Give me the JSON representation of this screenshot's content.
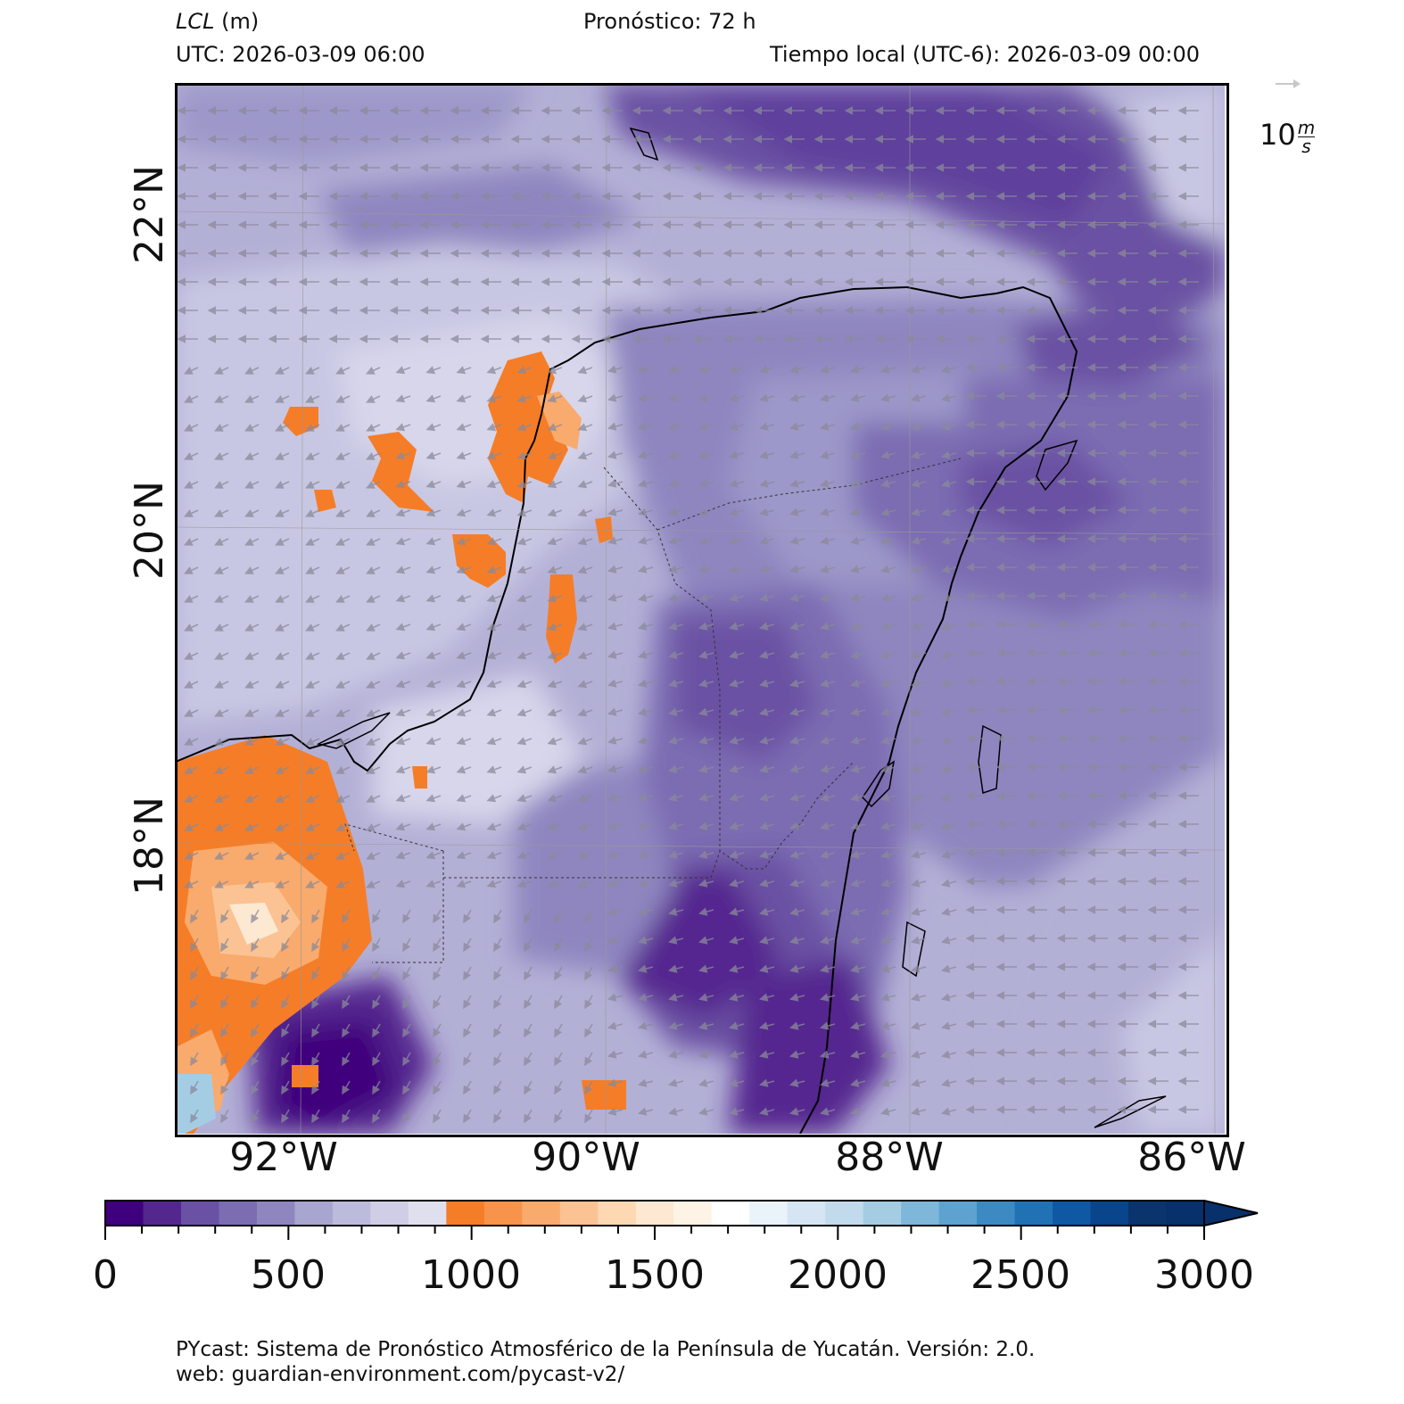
{
  "header": {
    "variable": "LCL",
    "units": "(m)",
    "forecast": "Pronóstico: 72 h",
    "utc": "UTC:  2026-03-09 06:00",
    "local": "Tiempo local (UTC-6): 2026-03-09 00:00"
  },
  "map": {
    "region": "Península de Yucatán",
    "lat_labels": [
      "22°N",
      "20°N",
      "18°N"
    ],
    "lon_labels": [
      "92°W",
      "90°W",
      "88°W",
      "86°W"
    ],
    "wind_field": "gray arrows, mostly from east (westward flow)"
  },
  "colorbar": {
    "ticks": [
      "0",
      "500",
      "1000",
      "1500",
      "2000",
      "2500",
      "3000"
    ],
    "range": [
      0,
      3000
    ],
    "step": 100,
    "extend": "max",
    "colors": [
      "#3f007d",
      "#54278f",
      "#6a51a3",
      "#7c6cb2",
      "#8f86c0",
      "#a8a6d0",
      "#bcbbdc",
      "#cfcee6",
      "#e0dfee",
      "#f57d28",
      "#f7934a",
      "#f9aa6d",
      "#fbc393",
      "#fdd8b3",
      "#fde8d2",
      "#fdf4e6",
      "#ffffff",
      "#eaf2fa",
      "#d5e5f3",
      "#c1dbec",
      "#a4cde3",
      "#7fb7db",
      "#5ea2d0",
      "#3d89c2",
      "#2171b5",
      "#0f58a3",
      "#08458a",
      "#0a346b",
      "#08306b"
    ]
  },
  "reference_vector": {
    "value": "10",
    "unit_num": "m",
    "unit_den": "s"
  },
  "footer": {
    "line1": "PYcast: Sistema de Pronóstico Atmosférico de la Península de Yucatán. Versión: 2.0.",
    "line2": "web: guardian-environment.com/pycast-v2/"
  }
}
